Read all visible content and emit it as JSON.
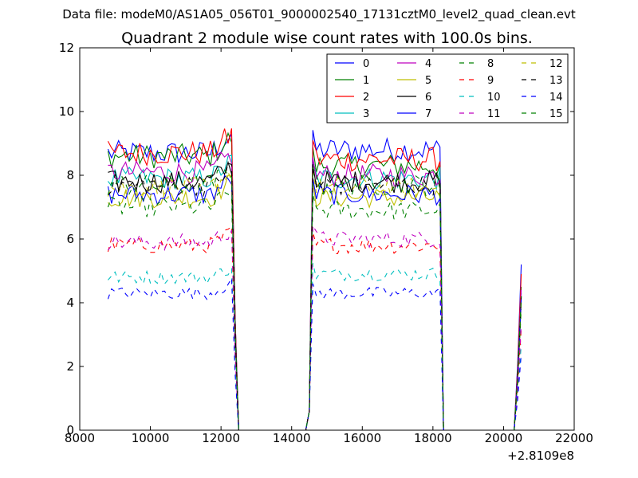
{
  "chart_data": {
    "type": "line",
    "suptitle": "Data file: modeM0/AS1A05_056T01_9000002540_17131cztM0_level2_quad_clean.evt",
    "title": "Quadrant 2 module wise count rates with 100.0s bins.",
    "xlabel": "",
    "ylabel": "",
    "x_offset_label": "+2.8109e8",
    "xlim": [
      8000,
      22000
    ],
    "ylim": [
      0,
      12
    ],
    "xticks": [
      8000,
      10000,
      12000,
      14000,
      16000,
      18000,
      20000,
      22000
    ],
    "yticks": [
      0,
      2,
      4,
      6,
      8,
      10,
      12
    ],
    "grid": false,
    "legend_position": "top-right",
    "segments": [
      {
        "x_start": 8800,
        "x_end": 12300
      },
      {
        "x_start": 14600,
        "x_end": 18200
      },
      {
        "x_start": 20400,
        "x_end": 20500
      }
    ],
    "gap_points": [
      12400,
      12500,
      14400,
      14500,
      18300,
      20300
    ],
    "series": [
      {
        "name": "0",
        "color": "#0000ff",
        "dash": "solid",
        "mean1": 8.7,
        "mean2": 8.8,
        "end": 5.2
      },
      {
        "name": "1",
        "color": "#008000",
        "dash": "solid",
        "mean1": 8.6,
        "mean2": 8.3,
        "end": 4.5
      },
      {
        "name": "2",
        "color": "#ff0000",
        "dash": "solid",
        "mean1": 8.7,
        "mean2": 8.5,
        "end": 4.9
      },
      {
        "name": "3",
        "color": "#00bfbf",
        "dash": "solid",
        "mean1": 7.9,
        "mean2": 7.9,
        "end": 4.3
      },
      {
        "name": "4",
        "color": "#bf00bf",
        "dash": "solid",
        "mean1": 8.1,
        "mean2": 8.0,
        "end": 4.4
      },
      {
        "name": "5",
        "color": "#bfbf00",
        "dash": "solid",
        "mean1": 7.3,
        "mean2": 7.3,
        "end": 4.0
      },
      {
        "name": "6",
        "color": "#000000",
        "dash": "solid",
        "mean1": 7.8,
        "mean2": 7.8,
        "end": 4.2
      },
      {
        "name": "7",
        "color": "#0000ff",
        "dash": "solid",
        "mean1": 7.4,
        "mean2": 7.4,
        "end": 4.1
      },
      {
        "name": "8",
        "color": "#008000",
        "dash": "dashed",
        "mean1": 7.0,
        "mean2": 6.9,
        "end": 3.8
      },
      {
        "name": "9",
        "color": "#ff0000",
        "dash": "dashed",
        "mean1": 5.8,
        "mean2": 5.8,
        "end": 3.2
      },
      {
        "name": "10",
        "color": "#00bfbf",
        "dash": "dashed",
        "mean1": 4.8,
        "mean2": 4.9,
        "end": 2.7
      },
      {
        "name": "11",
        "color": "#bf00bf",
        "dash": "dashed",
        "mean1": 5.9,
        "mean2": 6.0,
        "end": 3.3
      },
      {
        "name": "12",
        "color": "#bfbf00",
        "dash": "dashed",
        "mean1": 7.6,
        "mean2": 7.6,
        "end": 4.1
      },
      {
        "name": "13",
        "color": "#000000",
        "dash": "dashed",
        "mean1": 7.7,
        "mean2": 7.7,
        "end": 4.2
      },
      {
        "name": "14",
        "color": "#0000ff",
        "dash": "dashed",
        "mean1": 4.3,
        "mean2": 4.3,
        "end": 2.4
      },
      {
        "name": "15",
        "color": "#008000",
        "dash": "dashed",
        "mean1": 7.7,
        "mean2": 7.7,
        "end": 4.2
      }
    ]
  }
}
